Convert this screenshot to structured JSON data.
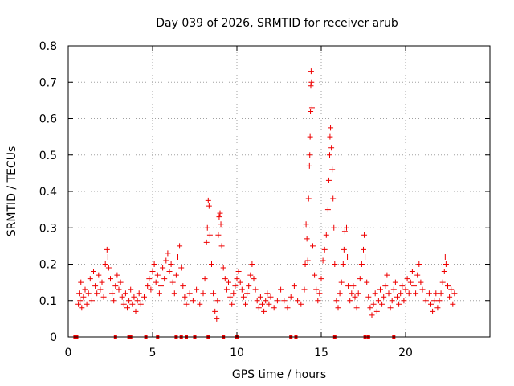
{
  "chart_data": {
    "type": "scatter",
    "title": "Day 039 of 2026, SRMTID for receiver arub",
    "xlabel": "GPS time / hours",
    "ylabel": "SRMTID / TECUs",
    "xlim": [
      0,
      25
    ],
    "ylim": [
      0,
      0.8
    ],
    "x_ticks": [
      "0",
      "5",
      "10",
      "15",
      "20"
    ],
    "x_tick_values": [
      0,
      5,
      10,
      15,
      20
    ],
    "y_ticks": [
      "0",
      "0.1",
      "0.2",
      "0.3",
      "0.4",
      "0.5",
      "0.6",
      "0.7",
      "0.8"
    ],
    "y_tick_values": [
      0,
      0.1,
      0.2,
      0.3,
      0.4,
      0.5,
      0.6,
      0.7,
      0.8
    ],
    "grid": true,
    "marker": "+",
    "colors": {
      "series": "#ee0000",
      "grid": "#a0a0a0",
      "axis": "#000000"
    },
    "series": [
      {
        "name": "SRMTID",
        "points": [
          [
            0.6,
            0.09
          ],
          [
            0.65,
            0.12
          ],
          [
            0.7,
            0.1
          ],
          [
            0.75,
            0.15
          ],
          [
            0.8,
            0.08
          ],
          [
            0.9,
            0.11
          ],
          [
            1.0,
            0.13
          ],
          [
            1.1,
            0.09
          ],
          [
            1.2,
            0.12
          ],
          [
            1.3,
            0.16
          ],
          [
            1.4,
            0.1
          ],
          [
            1.5,
            0.18
          ],
          [
            1.6,
            0.14
          ],
          [
            1.7,
            0.12
          ],
          [
            1.8,
            0.17
          ],
          [
            1.9,
            0.13
          ],
          [
            2.0,
            0.15
          ],
          [
            2.1,
            0.11
          ],
          [
            2.2,
            0.2
          ],
          [
            2.3,
            0.24
          ],
          [
            2.35,
            0.22
          ],
          [
            2.4,
            0.19
          ],
          [
            2.5,
            0.16
          ],
          [
            2.6,
            0.12
          ],
          [
            2.7,
            0.1
          ],
          [
            2.8,
            0.14
          ],
          [
            2.9,
            0.17
          ],
          [
            3.0,
            0.13
          ],
          [
            3.1,
            0.15
          ],
          [
            3.2,
            0.11
          ],
          [
            3.3,
            0.09
          ],
          [
            3.4,
            0.12
          ],
          [
            3.5,
            0.08
          ],
          [
            3.6,
            0.1
          ],
          [
            3.7,
            0.13
          ],
          [
            3.8,
            0.09
          ],
          [
            3.9,
            0.11
          ],
          [
            4.0,
            0.07
          ],
          [
            4.1,
            0.1
          ],
          [
            4.2,
            0.12
          ],
          [
            4.3,
            0.09
          ],
          [
            4.5,
            0.11
          ],
          [
            4.7,
            0.14
          ],
          [
            4.8,
            0.16
          ],
          [
            4.9,
            0.13
          ],
          [
            5.0,
            0.18
          ],
          [
            5.1,
            0.2
          ],
          [
            5.2,
            0.15
          ],
          [
            5.3,
            0.17
          ],
          [
            5.4,
            0.12
          ],
          [
            5.5,
            0.14
          ],
          [
            5.6,
            0.19
          ],
          [
            5.7,
            0.16
          ],
          [
            5.8,
            0.21
          ],
          [
            5.9,
            0.23
          ],
          [
            6.0,
            0.18
          ],
          [
            6.1,
            0.2
          ],
          [
            6.2,
            0.15
          ],
          [
            6.3,
            0.12
          ],
          [
            6.4,
            0.17
          ],
          [
            6.5,
            0.22
          ],
          [
            6.6,
            0.25
          ],
          [
            6.7,
            0.19
          ],
          [
            6.8,
            0.14
          ],
          [
            6.9,
            0.11
          ],
          [
            7.0,
            0.09
          ],
          [
            7.2,
            0.12
          ],
          [
            7.4,
            0.1
          ],
          [
            7.6,
            0.13
          ],
          [
            7.8,
            0.09
          ],
          [
            8.0,
            0.12
          ],
          [
            8.1,
            0.16
          ],
          [
            8.2,
            0.26
          ],
          [
            8.25,
            0.3
          ],
          [
            8.3,
            0.375
          ],
          [
            8.35,
            0.36
          ],
          [
            8.4,
            0.28
          ],
          [
            8.5,
            0.2
          ],
          [
            8.6,
            0.12
          ],
          [
            8.7,
            0.07
          ],
          [
            8.8,
            0.05
          ],
          [
            8.85,
            0.1
          ],
          [
            8.9,
            0.28
          ],
          [
            8.95,
            0.33
          ],
          [
            9.0,
            0.34
          ],
          [
            9.05,
            0.31
          ],
          [
            9.1,
            0.25
          ],
          [
            9.2,
            0.19
          ],
          [
            9.3,
            0.16
          ],
          [
            9.4,
            0.13
          ],
          [
            9.5,
            0.15
          ],
          [
            9.6,
            0.11
          ],
          [
            9.7,
            0.09
          ],
          [
            9.8,
            0.12
          ],
          [
            9.9,
            0.14
          ],
          [
            10.0,
            0.16
          ],
          [
            10.1,
            0.18
          ],
          [
            10.2,
            0.15
          ],
          [
            10.3,
            0.13
          ],
          [
            10.4,
            0.11
          ],
          [
            10.5,
            0.09
          ],
          [
            10.6,
            0.12
          ],
          [
            10.7,
            0.14
          ],
          [
            10.8,
            0.17
          ],
          [
            10.9,
            0.2
          ],
          [
            11.0,
            0.16
          ],
          [
            11.1,
            0.13
          ],
          [
            11.2,
            0.1
          ],
          [
            11.3,
            0.08
          ],
          [
            11.4,
            0.11
          ],
          [
            11.5,
            0.09
          ],
          [
            11.6,
            0.07
          ],
          [
            11.7,
            0.1
          ],
          [
            11.8,
            0.12
          ],
          [
            11.9,
            0.09
          ],
          [
            12.0,
            0.11
          ],
          [
            12.2,
            0.08
          ],
          [
            12.4,
            0.1
          ],
          [
            12.6,
            0.13
          ],
          [
            12.8,
            0.1
          ],
          [
            13.0,
            0.08
          ],
          [
            13.2,
            0.11
          ],
          [
            13.4,
            0.14
          ],
          [
            13.6,
            0.1
          ],
          [
            13.8,
            0.09
          ],
          [
            14.0,
            0.13
          ],
          [
            14.05,
            0.2
          ],
          [
            14.1,
            0.31
          ],
          [
            14.15,
            0.27
          ],
          [
            14.2,
            0.21
          ],
          [
            14.25,
            0.38
          ],
          [
            14.3,
            0.47
          ],
          [
            14.32,
            0.5
          ],
          [
            14.34,
            0.55
          ],
          [
            14.36,
            0.62
          ],
          [
            14.38,
            0.69
          ],
          [
            14.4,
            0.73
          ],
          [
            14.42,
            0.7
          ],
          [
            14.45,
            0.63
          ],
          [
            14.5,
            0.25
          ],
          [
            14.6,
            0.17
          ],
          [
            14.7,
            0.13
          ],
          [
            14.8,
            0.1
          ],
          [
            14.9,
            0.12
          ],
          [
            15.0,
            0.16
          ],
          [
            15.1,
            0.21
          ],
          [
            15.2,
            0.24
          ],
          [
            15.3,
            0.28
          ],
          [
            15.4,
            0.35
          ],
          [
            15.45,
            0.43
          ],
          [
            15.5,
            0.5
          ],
          [
            15.52,
            0.55
          ],
          [
            15.55,
            0.575
          ],
          [
            15.6,
            0.52
          ],
          [
            15.65,
            0.46
          ],
          [
            15.7,
            0.38
          ],
          [
            15.75,
            0.3
          ],
          [
            15.8,
            0.2
          ],
          [
            15.9,
            0.1
          ],
          [
            16.0,
            0.08
          ],
          [
            16.1,
            0.12
          ],
          [
            16.2,
            0.15
          ],
          [
            16.3,
            0.2
          ],
          [
            16.35,
            0.24
          ],
          [
            16.4,
            0.29
          ],
          [
            16.5,
            0.3
          ],
          [
            16.55,
            0.22
          ],
          [
            16.6,
            0.14
          ],
          [
            16.7,
            0.1
          ],
          [
            16.8,
            0.12
          ],
          [
            16.9,
            0.14
          ],
          [
            17.0,
            0.11
          ],
          [
            17.1,
            0.08
          ],
          [
            17.2,
            0.12
          ],
          [
            17.3,
            0.16
          ],
          [
            17.4,
            0.2
          ],
          [
            17.5,
            0.24
          ],
          [
            17.55,
            0.28
          ],
          [
            17.6,
            0.22
          ],
          [
            17.7,
            0.15
          ],
          [
            17.8,
            0.11
          ],
          [
            17.9,
            0.08
          ],
          [
            18.0,
            0.06
          ],
          [
            18.1,
            0.09
          ],
          [
            18.2,
            0.12
          ],
          [
            18.3,
            0.07
          ],
          [
            18.4,
            0.1
          ],
          [
            18.5,
            0.13
          ],
          [
            18.6,
            0.09
          ],
          [
            18.7,
            0.11
          ],
          [
            18.8,
            0.14
          ],
          [
            18.9,
            0.17
          ],
          [
            19.0,
            0.12
          ],
          [
            19.1,
            0.08
          ],
          [
            19.2,
            0.1
          ],
          [
            19.3,
            0.13
          ],
          [
            19.4,
            0.15
          ],
          [
            19.5,
            0.11
          ],
          [
            19.6,
            0.09
          ],
          [
            19.7,
            0.12
          ],
          [
            19.8,
            0.14
          ],
          [
            19.9,
            0.1
          ],
          [
            20.0,
            0.13
          ],
          [
            20.1,
            0.16
          ],
          [
            20.2,
            0.12
          ],
          [
            20.3,
            0.15
          ],
          [
            20.4,
            0.18
          ],
          [
            20.5,
            0.14
          ],
          [
            20.6,
            0.12
          ],
          [
            20.7,
            0.17
          ],
          [
            20.8,
            0.2
          ],
          [
            20.9,
            0.15
          ],
          [
            21.0,
            0.13
          ],
          [
            21.2,
            0.1
          ],
          [
            21.4,
            0.12
          ],
          [
            21.5,
            0.09
          ],
          [
            21.6,
            0.07
          ],
          [
            21.7,
            0.1
          ],
          [
            21.8,
            0.12
          ],
          [
            21.9,
            0.08
          ],
          [
            22.0,
            0.1
          ],
          [
            22.1,
            0.12
          ],
          [
            22.2,
            0.15
          ],
          [
            22.3,
            0.18
          ],
          [
            22.35,
            0.22
          ],
          [
            22.4,
            0.2
          ],
          [
            22.5,
            0.14
          ],
          [
            22.6,
            0.11
          ],
          [
            22.7,
            0.13
          ],
          [
            22.8,
            0.09
          ],
          [
            22.9,
            0.12
          ]
        ]
      }
    ],
    "baseline_markers": [
      0.4,
      0.5,
      2.8,
      3.6,
      3.7,
      4.6,
      5.3,
      6.4,
      6.7,
      7.0,
      7.5,
      8.3,
      9.2,
      10.0,
      13.2,
      13.5,
      15.8,
      17.6,
      17.8,
      19.3
    ]
  }
}
